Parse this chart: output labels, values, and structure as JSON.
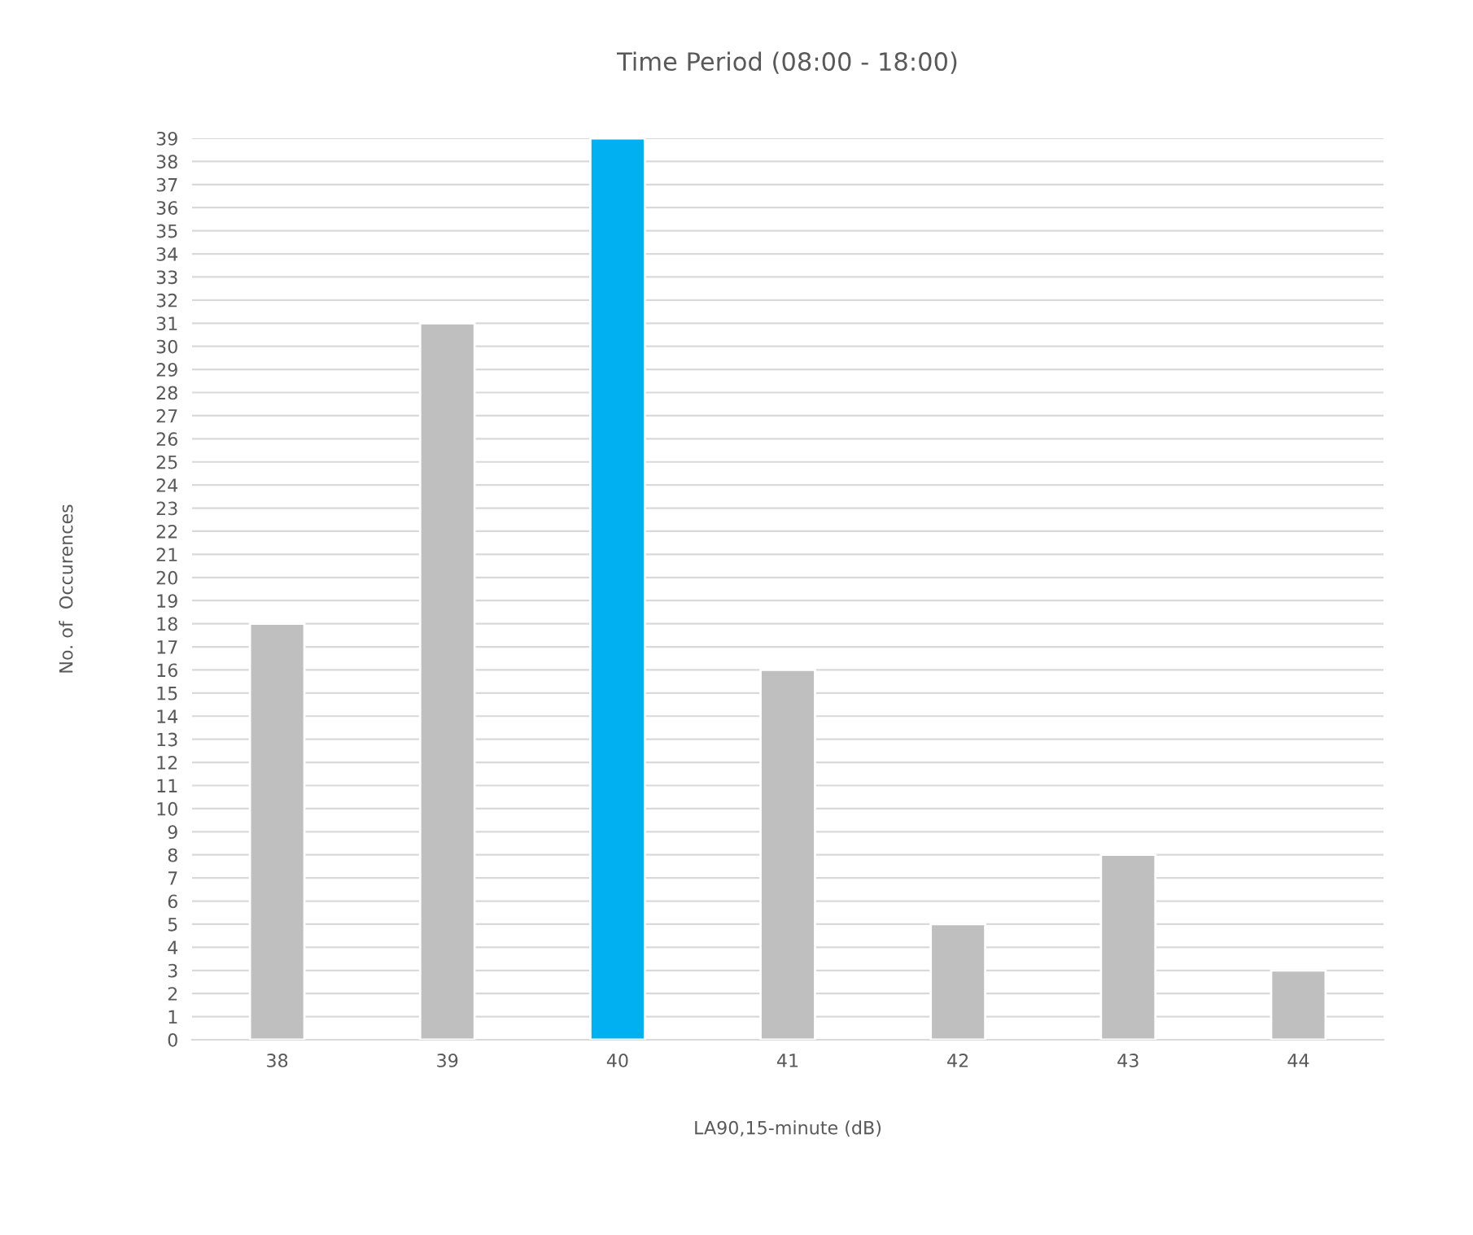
{
  "chart_data": {
    "type": "bar",
    "title": "Time Period (08:00 - 18:00)",
    "xlabel": "LA90,15-minute (dB)",
    "ylabel": "No. of  Occurences",
    "categories": [
      "38",
      "39",
      "40",
      "41",
      "42",
      "43",
      "44"
    ],
    "values": [
      18,
      31,
      39,
      16,
      5,
      8,
      3
    ],
    "colors": [
      "#bfbfbf",
      "#bfbfbf",
      "#00b0f0",
      "#bfbfbf",
      "#bfbfbf",
      "#bfbfbf",
      "#bfbfbf"
    ],
    "ylim": [
      0,
      39
    ],
    "yticks": [
      0,
      1,
      2,
      3,
      4,
      5,
      6,
      7,
      8,
      9,
      10,
      11,
      12,
      13,
      14,
      15,
      16,
      17,
      18,
      19,
      20,
      21,
      22,
      23,
      24,
      25,
      26,
      27,
      28,
      29,
      30,
      31,
      32,
      33,
      34,
      35,
      36,
      37,
      38,
      39
    ],
    "grid": "y",
    "legend": false
  }
}
